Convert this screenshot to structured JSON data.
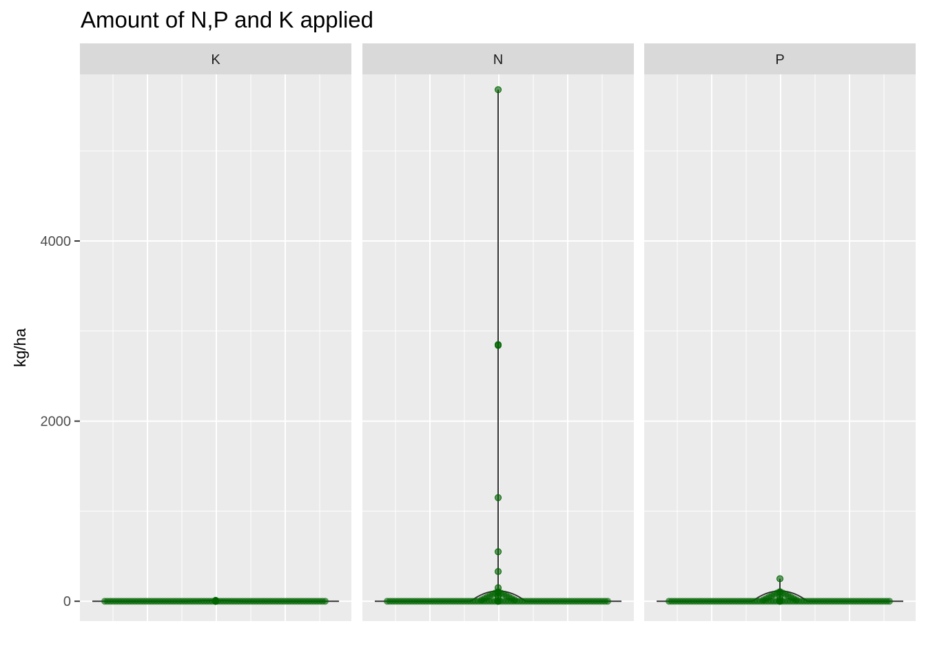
{
  "chart_data": {
    "type": "violin",
    "title": "Amount of N,P and K applied",
    "xlabel": "",
    "ylabel": "kg/ha",
    "ylim": [
      -220,
      5850
    ],
    "yticks": [
      0,
      2000,
      4000
    ],
    "grid": true,
    "point_color": "#006400",
    "facets": [
      {
        "label": "K",
        "points": [
          0,
          0,
          0,
          0,
          5,
          10
        ]
      },
      {
        "label": "N",
        "points": [
          0,
          0,
          30,
          60,
          100,
          150,
          330,
          550,
          1150,
          2840,
          2850,
          5680
        ]
      },
      {
        "label": "P",
        "points": [
          0,
          0,
          20,
          40,
          100,
          250
        ]
      }
    ]
  }
}
